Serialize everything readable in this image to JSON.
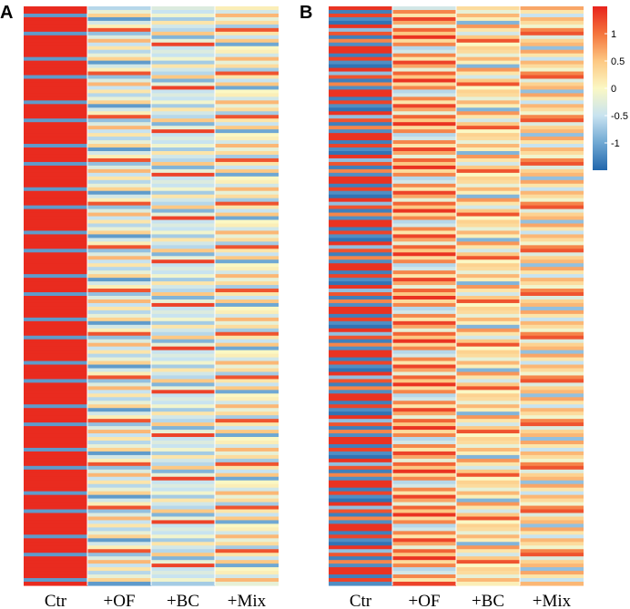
{
  "figure": {
    "panel_a_letter": "A",
    "panel_b_letter": "B"
  },
  "chart_data": [
    {
      "type": "heatmap",
      "panel": "A",
      "title": "",
      "columns": [
        "Ctr",
        "+OF",
        "+BC",
        "+Mix"
      ],
      "n_rows": 160,
      "value_range": [
        -1.5,
        1.5
      ],
      "row_pattern": {
        "Ctr": [
          1.45,
          1.45,
          -1.1,
          1.45,
          1.45,
          1.45,
          1.45,
          -1.1,
          1.45,
          1.45,
          1.45,
          1.45
        ],
        "+OF": [
          -0.6,
          -0.2,
          0.4,
          -1.1,
          -0.4,
          0.1,
          1.2,
          -0.8,
          -0.3,
          0.6,
          -0.5,
          0.2
        ],
        "+BC": [
          -0.3,
          -0.5,
          -0.1,
          -0.7,
          0.2,
          -0.4,
          -0.6,
          0.5,
          -0.9,
          -0.2,
          1.3,
          -0.5
        ],
        "+Mix": [
          0.1,
          -0.4,
          0.6,
          -0.2,
          0.3,
          -0.7,
          1.2,
          0.2,
          -0.5,
          0.5,
          -1.0,
          0.0
        ]
      }
    },
    {
      "type": "heatmap",
      "panel": "B",
      "title": "",
      "columns": [
        "Ctr",
        "+OF",
        "+BC",
        "+Mix"
      ],
      "n_rows": 160,
      "value_range": [
        -1.5,
        1.5
      ],
      "row_pattern": {
        "Ctr": [
          1.4,
          -1.3,
          1.3,
          -1.2,
          -1.4,
          1.4,
          -0.8,
          1.2,
          -1.3,
          0.9,
          -1.2,
          1.4
        ],
        "+OF": [
          -0.4,
          0.9,
          0.2,
          1.3,
          0.7,
          -0.2,
          1.1,
          0.5,
          1.4,
          0.3,
          0.9,
          -0.6
        ],
        "+BC": [
          0.3,
          -0.2,
          0.6,
          0.1,
          -0.9,
          0.8,
          0.2,
          -0.4,
          0.5,
          1.2,
          0.0,
          0.4
        ],
        "+Mix": [
          0.7,
          0.2,
          -0.5,
          0.6,
          0.3,
          -0.1,
          0.9,
          1.2,
          -0.3,
          0.4,
          0.6,
          -0.8
        ]
      }
    }
  ],
  "colorbar": {
    "ticks": [
      {
        "value": 1,
        "label": "1"
      },
      {
        "value": 0.5,
        "label": "0.5"
      },
      {
        "value": 0,
        "label": "0"
      },
      {
        "value": -0.5,
        "label": "-0.5"
      },
      {
        "value": -1,
        "label": "-1"
      }
    ],
    "range": [
      -1.5,
      1.5
    ],
    "color_stops": [
      "#2166ac",
      "#6fa8d3",
      "#c8e3f0",
      "#fbf8c4",
      "#fdc883",
      "#f4743c",
      "#e8231c"
    ]
  }
}
